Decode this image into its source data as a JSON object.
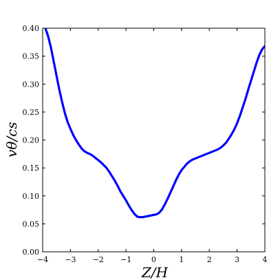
{
  "chart_data": {
    "type": "line",
    "xlabel": "Z/H",
    "ylabel": "vθ/cs",
    "xlim": [
      -4,
      4
    ],
    "ylim": [
      0.0,
      0.4
    ],
    "xticks": [
      -4,
      -3,
      -2,
      -1,
      0,
      1,
      2,
      3,
      4
    ],
    "xtick_labels": [
      "−4",
      "−3",
      "−2",
      "−1",
      "0",
      "1",
      "2",
      "3",
      "4"
    ],
    "yticks": [
      0.0,
      0.05,
      0.1,
      0.15,
      0.2,
      0.25,
      0.3,
      0.35,
      0.4
    ],
    "ytick_labels": [
      "0.00",
      "0.05",
      "0.10",
      "0.15",
      "0.20",
      "0.25",
      "0.30",
      "0.35",
      "0.40"
    ],
    "grid": false,
    "series": [
      {
        "color": "#0000ff",
        "x": [
          -4.0,
          -3.9,
          -3.8,
          -3.7,
          -3.6,
          -3.5,
          -3.4,
          -3.3,
          -3.2,
          -3.1,
          -3.0,
          -2.9,
          -2.8,
          -2.7,
          -2.6,
          -2.5,
          -2.4,
          -2.3,
          -2.2,
          -2.1,
          -2.0,
          -1.9,
          -1.8,
          -1.7,
          -1.6,
          -1.5,
          -1.4,
          -1.3,
          -1.2,
          -1.1,
          -1.0,
          -0.9,
          -0.8,
          -0.7,
          -0.6,
          -0.5,
          -0.4,
          -0.3,
          -0.2,
          -0.1,
          0.0,
          0.1,
          0.2,
          0.3,
          0.4,
          0.5,
          0.6,
          0.7,
          0.8,
          0.9,
          1.0,
          1.1,
          1.2,
          1.3,
          1.4,
          1.5,
          1.6,
          1.7,
          1.8,
          1.9,
          2.0,
          2.1,
          2.2,
          2.3,
          2.4,
          2.5,
          2.6,
          2.7,
          2.8,
          2.9,
          3.0,
          3.1,
          3.2,
          3.3,
          3.4,
          3.5,
          3.6,
          3.7,
          3.8,
          3.9,
          4.0
        ],
        "y": [
          0.405,
          0.4,
          0.385,
          0.365,
          0.34,
          0.315,
          0.29,
          0.268,
          0.248,
          0.232,
          0.22,
          0.209,
          0.2,
          0.192,
          0.185,
          0.18,
          0.177,
          0.175,
          0.172,
          0.168,
          0.164,
          0.16,
          0.155,
          0.15,
          0.143,
          0.135,
          0.127,
          0.118,
          0.108,
          0.1,
          0.092,
          0.083,
          0.075,
          0.068,
          0.063,
          0.062,
          0.062,
          0.063,
          0.064,
          0.065,
          0.066,
          0.067,
          0.07,
          0.076,
          0.085,
          0.095,
          0.106,
          0.117,
          0.128,
          0.138,
          0.146,
          0.152,
          0.158,
          0.162,
          0.165,
          0.167,
          0.169,
          0.171,
          0.173,
          0.175,
          0.177,
          0.179,
          0.181,
          0.183,
          0.186,
          0.19,
          0.195,
          0.202,
          0.21,
          0.219,
          0.23,
          0.243,
          0.258,
          0.273,
          0.29,
          0.306,
          0.322,
          0.338,
          0.352,
          0.362,
          0.368
        ]
      }
    ]
  }
}
